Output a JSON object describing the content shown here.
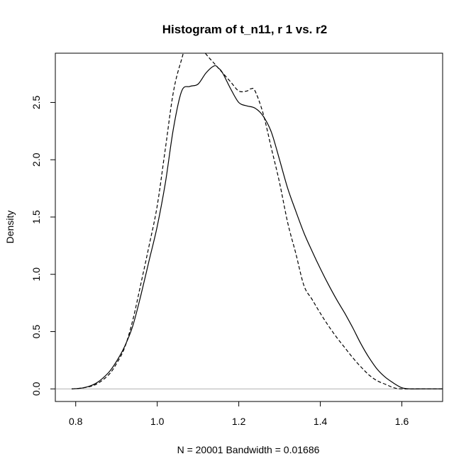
{
  "chart_data": {
    "type": "line",
    "title": "Histogram of t_n11, r 1 vs. r2",
    "xlabel": "N = 20001   Bandwidth = 0.01686",
    "ylabel": "Density",
    "xlim": [
      0.75,
      1.7
    ],
    "ylim": [
      -0.11,
      2.93
    ],
    "x_ticks": [
      0.8,
      1.0,
      1.2,
      1.4,
      1.6
    ],
    "x_tick_labels": [
      "0.8",
      "1.0",
      "1.2",
      "1.4",
      "1.6"
    ],
    "y_ticks": [
      0.0,
      0.5,
      1.0,
      1.5,
      2.0,
      2.5
    ],
    "y_tick_labels": [
      "0.0",
      "0.5",
      "1.0",
      "1.5",
      "2.0",
      "2.5"
    ],
    "baseline": 0,
    "grid": false,
    "series": [
      {
        "style": "solid",
        "x": [
          0.79,
          0.82,
          0.85,
          0.88,
          0.9,
          0.92,
          0.94,
          0.96,
          0.98,
          1.0,
          1.02,
          1.04,
          1.06,
          1.08,
          1.1,
          1.12,
          1.14,
          1.15,
          1.16,
          1.18,
          1.2,
          1.22,
          1.24,
          1.26,
          1.28,
          1.3,
          1.32,
          1.34,
          1.36,
          1.38,
          1.4,
          1.42,
          1.44,
          1.46,
          1.48,
          1.5,
          1.52,
          1.54,
          1.56,
          1.58,
          1.6,
          1.62,
          1.65,
          1.7
        ],
        "y": [
          0.0,
          0.01,
          0.05,
          0.14,
          0.24,
          0.37,
          0.55,
          0.82,
          1.12,
          1.42,
          1.8,
          2.28,
          2.6,
          2.64,
          2.66,
          2.76,
          2.82,
          2.8,
          2.76,
          2.62,
          2.5,
          2.47,
          2.45,
          2.38,
          2.24,
          2.0,
          1.75,
          1.55,
          1.36,
          1.2,
          1.05,
          0.91,
          0.78,
          0.66,
          0.53,
          0.39,
          0.27,
          0.17,
          0.1,
          0.05,
          0.01,
          0.0,
          0.0,
          0.0
        ]
      },
      {
        "style": "dashed",
        "x": [
          0.79,
          0.82,
          0.85,
          0.88,
          0.9,
          0.92,
          0.94,
          0.96,
          0.98,
          1.0,
          1.02,
          1.04,
          1.06,
          1.08,
          1.1,
          1.12,
          1.14,
          1.16,
          1.18,
          1.2,
          1.22,
          1.23,
          1.24,
          1.26,
          1.28,
          1.3,
          1.32,
          1.34,
          1.36,
          1.38,
          1.4,
          1.42,
          1.44,
          1.46,
          1.48,
          1.5,
          1.52,
          1.54,
          1.56,
          1.58,
          1.6,
          1.65,
          1.7
        ],
        "y": [
          0.0,
          0.01,
          0.04,
          0.12,
          0.22,
          0.36,
          0.6,
          0.92,
          1.25,
          1.6,
          2.1,
          2.6,
          2.88,
          3.1,
          3.02,
          2.92,
          2.84,
          2.76,
          2.68,
          2.6,
          2.6,
          2.62,
          2.6,
          2.4,
          2.1,
          1.8,
          1.45,
          1.18,
          0.9,
          0.78,
          0.66,
          0.55,
          0.45,
          0.36,
          0.27,
          0.19,
          0.12,
          0.07,
          0.04,
          0.01,
          0.0,
          0.0,
          0.0
        ]
      }
    ]
  }
}
